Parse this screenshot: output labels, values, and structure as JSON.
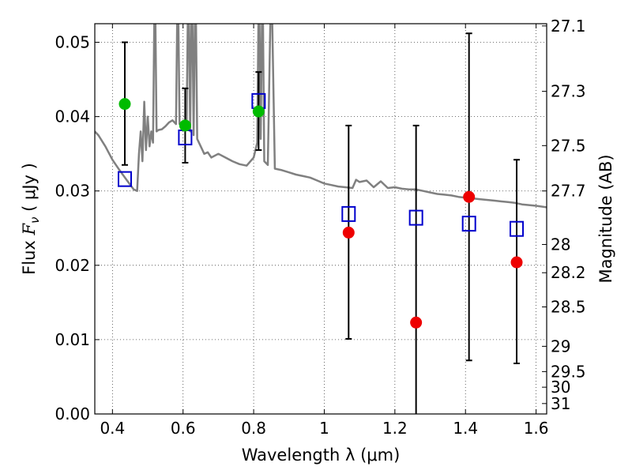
{
  "chart_data": {
    "type": "scatter",
    "xlabel": "Wavelength  λ (μm)",
    "ylabel": "Flux  F_ν  ( μJy )",
    "ylabel_parts": {
      "prefix": "Flux ",
      "symbol": "F",
      "subscript": "ν",
      "units": " ( μJy )"
    },
    "y2label": "Magnitude (AB)",
    "xlim": [
      0.35,
      1.63
    ],
    "ylim": [
      0.0,
      0.0525
    ],
    "grid": true,
    "x_ticks": [
      0.4,
      0.6,
      0.8,
      1.0,
      1.2,
      1.4,
      1.6
    ],
    "x_tick_labels": [
      "0.4",
      "0.6",
      "0.8",
      "1",
      "1.2",
      "1.4",
      "1.6"
    ],
    "y_ticks": [
      0.0,
      0.01,
      0.02,
      0.03,
      0.04,
      0.05
    ],
    "y_tick_labels": [
      "0.00",
      "0.01",
      "0.02",
      "0.03",
      "0.04",
      "0.05"
    ],
    "y2_ticks": [
      {
        "label": "27.1",
        "flux": 0.0522
      },
      {
        "label": "27.3",
        "flux": 0.0434
      },
      {
        "label": "27.5",
        "flux": 0.0361
      },
      {
        "label": "27.7",
        "flux": 0.03
      },
      {
        "label": "28",
        "flux": 0.0228
      },
      {
        "label": "28.2",
        "flux": 0.019
      },
      {
        "label": "28.5",
        "flux": 0.0144
      },
      {
        "label": "29",
        "flux": 0.0091
      },
      {
        "label": "29.5",
        "flux": 0.0057
      },
      {
        "label": "30",
        "flux": 0.0036
      },
      {
        "label": "31",
        "flux": 0.0014
      }
    ],
    "colors": {
      "sed": "#808080",
      "green": "#00bb00",
      "red": "#ee0000",
      "blue": "#0000cc",
      "errorbar": "#000000"
    },
    "series": [
      {
        "kind": "line",
        "points": [
          [
            0.35,
            0.038
          ],
          [
            0.36,
            0.0375
          ],
          [
            0.38,
            0.036
          ],
          [
            0.4,
            0.0342
          ],
          [
            0.42,
            0.0328
          ],
          [
            0.44,
            0.0315
          ],
          [
            0.46,
            0.0302
          ],
          [
            0.47,
            0.03
          ],
          [
            0.475,
            0.035
          ],
          [
            0.48,
            0.038
          ],
          [
            0.485,
            0.034
          ],
          [
            0.49,
            0.042
          ],
          [
            0.495,
            0.0355
          ],
          [
            0.5,
            0.04
          ],
          [
            0.505,
            0.036
          ],
          [
            0.51,
            0.038
          ],
          [
            0.515,
            0.0365
          ],
          [
            0.52,
            0.06
          ],
          [
            0.525,
            0.038
          ],
          [
            0.53,
            0.0382
          ],
          [
            0.54,
            0.0383
          ],
          [
            0.55,
            0.0387
          ],
          [
            0.56,
            0.0392
          ],
          [
            0.57,
            0.0395
          ],
          [
            0.58,
            0.039
          ],
          [
            0.585,
            0.06
          ],
          [
            0.59,
            0.039
          ],
          [
            0.6,
            0.0387
          ],
          [
            0.61,
            0.0385
          ],
          [
            0.615,
            0.06
          ],
          [
            0.62,
            0.038
          ],
          [
            0.625,
            0.06
          ],
          [
            0.63,
            0.0375
          ],
          [
            0.635,
            0.06
          ],
          [
            0.64,
            0.037
          ],
          [
            0.65,
            0.036
          ],
          [
            0.66,
            0.035
          ],
          [
            0.67,
            0.0352
          ],
          [
            0.68,
            0.0345
          ],
          [
            0.7,
            0.035
          ],
          [
            0.72,
            0.0345
          ],
          [
            0.74,
            0.034
          ],
          [
            0.76,
            0.0336
          ],
          [
            0.78,
            0.0334
          ],
          [
            0.8,
            0.0345
          ],
          [
            0.81,
            0.0365
          ],
          [
            0.815,
            0.06
          ],
          [
            0.82,
            0.037
          ],
          [
            0.825,
            0.06
          ],
          [
            0.83,
            0.034
          ],
          [
            0.84,
            0.0335
          ],
          [
            0.85,
            0.06
          ],
          [
            0.86,
            0.033
          ],
          [
            0.88,
            0.0328
          ],
          [
            0.9,
            0.0325
          ],
          [
            0.92,
            0.0322
          ],
          [
            0.94,
            0.032
          ],
          [
            0.96,
            0.0318
          ],
          [
            0.98,
            0.0314
          ],
          [
            1.0,
            0.031
          ],
          [
            1.02,
            0.0308
          ],
          [
            1.04,
            0.0306
          ],
          [
            1.06,
            0.0305
          ],
          [
            1.08,
            0.0304
          ],
          [
            1.09,
            0.0315
          ],
          [
            1.1,
            0.0312
          ],
          [
            1.12,
            0.0314
          ],
          [
            1.14,
            0.0305
          ],
          [
            1.16,
            0.0313
          ],
          [
            1.18,
            0.0304
          ],
          [
            1.2,
            0.0305
          ],
          [
            1.22,
            0.0303
          ],
          [
            1.24,
            0.0302
          ],
          [
            1.26,
            0.0302
          ],
          [
            1.28,
            0.03
          ],
          [
            1.3,
            0.0298
          ],
          [
            1.32,
            0.0296
          ],
          [
            1.34,
            0.0295
          ],
          [
            1.36,
            0.0294
          ],
          [
            1.38,
            0.0292
          ],
          [
            1.4,
            0.0291
          ],
          [
            1.42,
            0.029
          ],
          [
            1.44,
            0.0289
          ],
          [
            1.46,
            0.0288
          ],
          [
            1.48,
            0.0287
          ],
          [
            1.5,
            0.0286
          ],
          [
            1.52,
            0.0285
          ],
          [
            1.54,
            0.0284
          ],
          [
            1.56,
            0.0282
          ],
          [
            1.58,
            0.0281
          ],
          [
            1.6,
            0.028
          ],
          [
            1.63,
            0.0278
          ]
        ]
      },
      {
        "kind": "circle",
        "color": "green",
        "points": [
          {
            "x": 0.435,
            "y": 0.0417,
            "ylo": 0.0335,
            "yhi": 0.05
          },
          {
            "x": 0.606,
            "y": 0.0388,
            "ylo": 0.0338,
            "yhi": 0.0438
          },
          {
            "x": 0.814,
            "y": 0.0407,
            "ylo": 0.0355,
            "yhi": 0.046
          }
        ]
      },
      {
        "kind": "circle",
        "color": "red",
        "points": [
          {
            "x": 1.069,
            "y": 0.0244,
            "ylo": 0.0101,
            "yhi": 0.0388
          },
          {
            "x": 1.26,
            "y": 0.0123,
            "ylo": 0.0,
            "yhi": 0.0388
          },
          {
            "x": 1.41,
            "y": 0.0292,
            "ylo": 0.0072,
            "yhi": 0.0512
          },
          {
            "x": 1.545,
            "y": 0.0204,
            "ylo": 0.0068,
            "yhi": 0.0342
          }
        ]
      },
      {
        "kind": "square",
        "color": "blue",
        "points": [
          {
            "x": 0.435,
            "y": 0.0316
          },
          {
            "x": 0.606,
            "y": 0.0372
          },
          {
            "x": 0.814,
            "y": 0.0421
          },
          {
            "x": 1.069,
            "y": 0.0269
          },
          {
            "x": 1.26,
            "y": 0.0264
          },
          {
            "x": 1.41,
            "y": 0.0256
          },
          {
            "x": 1.545,
            "y": 0.0249
          }
        ]
      }
    ]
  }
}
